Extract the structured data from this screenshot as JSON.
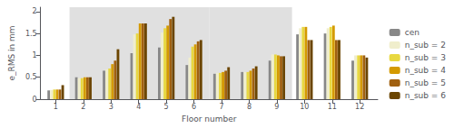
{
  "chart_data": {
    "type": "bar",
    "xlabel": "Floor number",
    "ylabel": "e_RMS in mm",
    "x": [
      1,
      2,
      3,
      4,
      5,
      6,
      7,
      8,
      9,
      10,
      11,
      12
    ],
    "series": [
      {
        "name": "cen",
        "color": "#888888",
        "values": [
          0.2,
          0.5,
          0.65,
          1.05,
          1.18,
          0.78,
          0.58,
          0.62,
          0.88,
          1.48,
          1.5,
          0.88
        ]
      },
      {
        "name": "n_sub = 2",
        "color": "#f0eecc",
        "values": [
          0.21,
          0.48,
          0.68,
          1.48,
          1.52,
          0.95,
          0.6,
          0.62,
          1.02,
          1.62,
          1.62,
          1.0
        ]
      },
      {
        "name": "n_sub = 3",
        "color": "#e8d840",
        "values": [
          0.22,
          0.48,
          0.7,
          1.5,
          1.62,
          1.2,
          0.6,
          0.62,
          1.02,
          1.65,
          1.65,
          1.0
        ]
      },
      {
        "name": "n_sub = 4",
        "color": "#d49a00",
        "values": [
          0.22,
          0.5,
          0.8,
          1.73,
          1.68,
          1.25,
          0.62,
          0.65,
          1.0,
          1.65,
          1.68,
          1.0
        ]
      },
      {
        "name": "n_sub = 5",
        "color": "#a06010",
        "values": [
          0.22,
          0.5,
          0.88,
          1.73,
          1.83,
          1.32,
          0.65,
          0.7,
          0.98,
          1.35,
          1.35,
          1.0
        ]
      },
      {
        "name": "n_sub = 6",
        "color": "#6b4500",
        "values": [
          0.32,
          0.5,
          1.14,
          1.73,
          1.88,
          1.35,
          0.73,
          0.75,
          0.98,
          1.35,
          1.35,
          0.95
        ]
      }
    ],
    "shaded_regions": [
      [
        1.5,
        6.55
      ],
      [
        6.55,
        9.55
      ]
    ],
    "xlim": [
      0.45,
      12.65
    ],
    "xticks": [
      1,
      2,
      3,
      4,
      5,
      6,
      7,
      8,
      9,
      10,
      11,
      12
    ],
    "ylim": [
      0,
      2.1
    ],
    "yticks": [
      0,
      0.5,
      1,
      1.5,
      2
    ],
    "grid": false,
    "legend": "right"
  }
}
